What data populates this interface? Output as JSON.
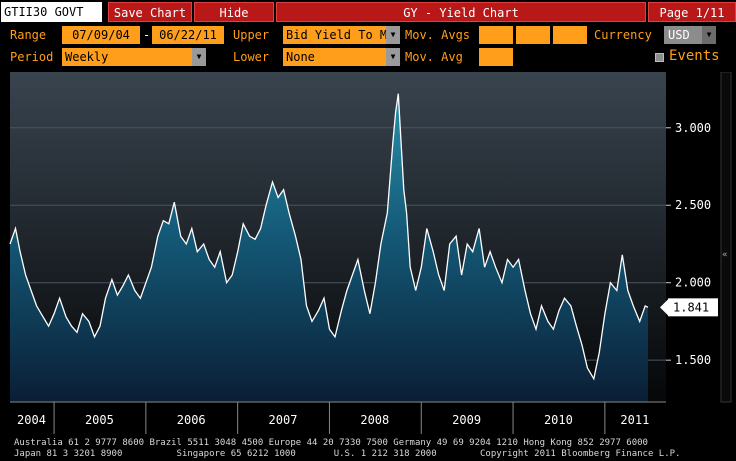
{
  "topbar": {
    "security": "GTII30 GOVT",
    "save_chart": "Save Chart",
    "hide": "Hide",
    "title": "GY - Yield Chart",
    "page": "Page 1/11"
  },
  "controls": {
    "range_label": "Range",
    "range_start": "07/09/04",
    "range_sep": "-",
    "range_end": "06/22/11",
    "upper_label": "Upper",
    "upper_value": "Bid Yield To Mat",
    "mov_avgs_label": "Mov. Avgs",
    "currency_label": "Currency",
    "currency_value": "USD",
    "period_label": "Period",
    "period_value": "Weekly",
    "lower_label": "Lower",
    "lower_value": "None",
    "mov_avg_label": "Mov. Avg",
    "events_label": "Events"
  },
  "colors": {
    "accent_orange": "#ff9e1b",
    "title_red": "#b81818",
    "area_top": "#1d6c86",
    "area_bottom": "#0a1e35"
  },
  "chart_data": {
    "type": "area",
    "title": "",
    "xlabel": "",
    "ylabel": "",
    "x_ticks": [
      "2004",
      "2005",
      "2006",
      "2007",
      "2008",
      "2009",
      "2010",
      "2011"
    ],
    "y_ticks": [
      "3.000",
      "2.500",
      "2.000",
      "1.500"
    ],
    "ylim": [
      1.23,
      3.36
    ],
    "last_value_label": "1.841",
    "grid": "horizontal",
    "series": [
      {
        "x": [
          2004.52,
          2004.58,
          2004.63,
          2004.69,
          2004.75,
          2004.81,
          2004.88,
          2004.94,
          2005.0,
          2005.06,
          2005.13,
          2005.19,
          2005.25,
          2005.31,
          2005.38,
          2005.44,
          2005.5,
          2005.56,
          2005.63,
          2005.69,
          2005.75,
          2005.81,
          2005.88,
          2005.94,
          2006.0,
          2006.06,
          2006.13,
          2006.19,
          2006.25,
          2006.31,
          2006.38,
          2006.44,
          2006.5,
          2006.56,
          2006.63,
          2006.69,
          2006.75,
          2006.81,
          2006.88,
          2006.94,
          2007.0,
          2007.06,
          2007.13,
          2007.19,
          2007.25,
          2007.31,
          2007.38,
          2007.44,
          2007.5,
          2007.56,
          2007.63,
          2007.69,
          2007.75,
          2007.81,
          2007.88,
          2007.94,
          2008.0,
          2008.06,
          2008.13,
          2008.19,
          2008.25,
          2008.31,
          2008.38,
          2008.44,
          2008.5,
          2008.56,
          2008.63,
          2008.69,
          2008.72,
          2008.75,
          2008.78,
          2008.81,
          2008.84,
          2008.88,
          2008.94,
          2009.0,
          2009.06,
          2009.13,
          2009.19,
          2009.25,
          2009.31,
          2009.38,
          2009.44,
          2009.5,
          2009.56,
          2009.63,
          2009.69,
          2009.75,
          2009.81,
          2009.88,
          2009.94,
          2010.0,
          2010.06,
          2010.13,
          2010.19,
          2010.25,
          2010.31,
          2010.38,
          2010.44,
          2010.5,
          2010.56,
          2010.63,
          2010.69,
          2010.75,
          2010.81,
          2010.88,
          2010.94,
          2011.0,
          2011.06,
          2011.13,
          2011.19,
          2011.25,
          2011.31,
          2011.38,
          2011.44,
          2011.47
        ],
        "values": [
          2.25,
          2.35,
          2.2,
          2.05,
          1.95,
          1.85,
          1.78,
          1.72,
          1.8,
          1.9,
          1.78,
          1.72,
          1.68,
          1.8,
          1.75,
          1.65,
          1.72,
          1.9,
          2.02,
          1.92,
          1.98,
          2.05,
          1.95,
          1.9,
          2.0,
          2.1,
          2.3,
          2.4,
          2.38,
          2.52,
          2.3,
          2.25,
          2.35,
          2.2,
          2.25,
          2.15,
          2.1,
          2.2,
          2.0,
          2.05,
          2.2,
          2.38,
          2.3,
          2.28,
          2.35,
          2.5,
          2.65,
          2.55,
          2.6,
          2.45,
          2.3,
          2.15,
          1.85,
          1.75,
          1.82,
          1.9,
          1.7,
          1.65,
          1.82,
          1.95,
          2.05,
          2.15,
          1.95,
          1.8,
          2.0,
          2.25,
          2.45,
          2.9,
          3.1,
          3.22,
          2.9,
          2.6,
          2.45,
          2.1,
          1.95,
          2.1,
          2.35,
          2.2,
          2.05,
          1.95,
          2.25,
          2.3,
          2.05,
          2.25,
          2.2,
          2.35,
          2.1,
          2.2,
          2.1,
          2.0,
          2.15,
          2.1,
          2.15,
          1.95,
          1.8,
          1.7,
          1.85,
          1.75,
          1.7,
          1.82,
          1.9,
          1.85,
          1.72,
          1.6,
          1.45,
          1.38,
          1.55,
          1.8,
          2.0,
          1.95,
          2.18,
          1.95,
          1.85,
          1.75,
          1.85,
          1.841
        ]
      }
    ]
  },
  "footer": {
    "line1": "Australia 61 2 9777 8600 Brazil 5511 3048 4500 Europe 44 20 7330 7500 Germany 49 69 9204 1210 Hong Kong 852 2977 6000",
    "line2": "Japan 81 3 3201 8900          Singapore 65 6212 1000       U.S. 1 212 318 2000        Copyright 2011 Bloomberg Finance L.P."
  }
}
